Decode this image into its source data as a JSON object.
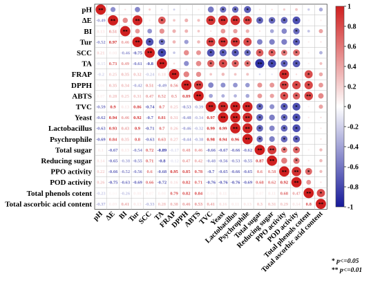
{
  "chart_data": {
    "type": "heatmap",
    "title": "",
    "variables": [
      "pH",
      "ΔE",
      "BI",
      "Tur",
      "SCC",
      "TA",
      "FRAP",
      "DPPH",
      "ABTS",
      "TVC",
      "Yeast",
      "Lactobacillus",
      "Psychrophile",
      "Total sugar",
      "Reducing sugar",
      "PPO activity",
      "POD activity",
      "Total phenols cotent",
      "Total ascorbic acid content"
    ],
    "lower_triangle_values": [
      [],
      [
        -0.49
      ],
      [
        0.13,
        0.51
      ],
      [
        -0.52,
        0.97,
        0.46
      ],
      [
        0.21,
        0.08,
        -0.46,
        -0.75
      ],
      [
        -0.15,
        0.73,
        0.49,
        -0.61,
        -0.8
      ],
      [
        -0.2,
        0.25,
        0.35,
        0.32,
        -0.24,
        0.18
      ],
      [
        0.06,
        0.35,
        0.34,
        -0.42,
        0.51,
        -0.49,
        0.56
      ],
      [
        0.07,
        0.28,
        0.25,
        0.31,
        0.47,
        0.52,
        0.5,
        0.89
      ],
      [
        -0.59,
        0.9,
        0.13,
        0.86,
        -0.74,
        0.7,
        0.25,
        -0.53,
        -0.39
      ],
      [
        -0.62,
        0.94,
        0.46,
        0.92,
        -0.7,
        0.81,
        0.31,
        -0.48,
        -0.34,
        0.97
      ],
      [
        -0.63,
        0.93,
        0.43,
        0.9,
        -0.71,
        0.7,
        0.26,
        -0.46,
        -0.32,
        0.99,
        0.99
      ],
      [
        -0.69,
        0.84,
        0.35,
        0.8,
        -0.63,
        0.63,
        0.27,
        -0.44,
        -0.38,
        0.98,
        0.94,
        0.96
      ],
      [
        0.1,
        -0.67,
        0.13,
        -0.54,
        0.72,
        -0.89,
        -0.17,
        0.48,
        0.46,
        -0.66,
        -0.67,
        -0.66,
        -0.62
      ],
      [
        0.14,
        -0.65,
        -0.38,
        -0.55,
        0.71,
        -0.8,
        -0.12,
        0.47,
        0.42,
        -0.48,
        -0.56,
        -0.53,
        -0.55,
        0.87
      ],
      [
        0.22,
        -0.66,
        -0.52,
        -0.56,
        0.6,
        -0.68,
        0.95,
        0.85,
        0.78,
        -0.7,
        -0.65,
        -0.66,
        -0.65,
        0.6,
        0.58
      ],
      [
        0.26,
        -0.75,
        -0.63,
        -0.69,
        0.66,
        -0.72,
        0.16,
        0.82,
        0.71,
        -0.76,
        -0.76,
        -0.76,
        -0.69,
        0.68,
        0.62,
        0.92
      ],
      [
        -0.23,
        0.04,
        -0.26,
        0.08,
        0.07,
        0.08,
        0.79,
        0.82,
        0.84,
        0.06,
        0.11,
        0.03,
        0.01,
        0.07,
        0.11,
        0.68,
        0.47
      ],
      [
        -0.37,
        0.09,
        0.41,
        0.13,
        -0.33,
        0.28,
        0.38,
        0.46,
        0.53,
        0.41,
        0.16,
        0.11,
        0.13,
        0.3,
        0.31,
        0.29,
        0.14,
        0.8
      ]
    ],
    "colorbar_ticks": [
      "1",
      "0.8",
      "0.6",
      "0.4",
      "0.2",
      "0",
      "-0.2",
      "-0.4",
      "-0.6",
      "-0.8",
      "-1"
    ],
    "value_range": [
      -1,
      1
    ],
    "colors": {
      "positive": "#cf1f1f",
      "negative": "#16199a",
      "neutral": "#ffffff"
    },
    "significance_notes": [
      {
        "marker": "*",
        "text": "p<=0.05"
      },
      {
        "marker": "**",
        "text": "p<=0.01"
      }
    ]
  }
}
